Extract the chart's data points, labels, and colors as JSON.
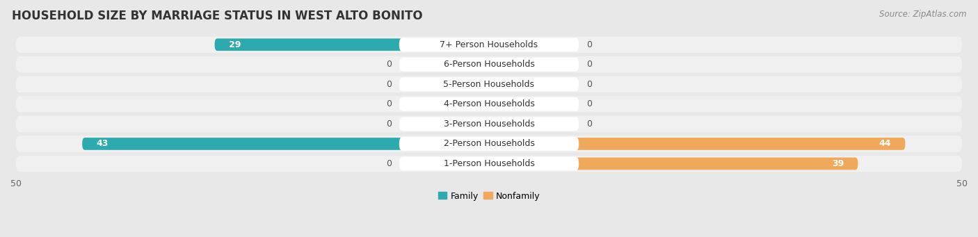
{
  "title": "HOUSEHOLD SIZE BY MARRIAGE STATUS IN WEST ALTO BONITO",
  "source": "Source: ZipAtlas.com",
  "categories": [
    "7+ Person Households",
    "6-Person Households",
    "5-Person Households",
    "4-Person Households",
    "3-Person Households",
    "2-Person Households",
    "1-Person Households"
  ],
  "family_values": [
    29,
    0,
    0,
    0,
    0,
    43,
    0
  ],
  "nonfamily_values": [
    0,
    0,
    0,
    0,
    0,
    44,
    39
  ],
  "family_color": "#2DAAAD",
  "nonfamily_color": "#F0A85A",
  "family_color_light": "#8ECFD1",
  "nonfamily_color_light": "#F5CDA8",
  "background_color": "#e8e8e8",
  "row_bg_color": "#f0f0f0",
  "label_bg_color": "#ffffff",
  "title_fontsize": 12,
  "source_fontsize": 8.5,
  "label_fontsize": 9,
  "value_fontsize": 9,
  "tick_fontsize": 9,
  "zero_stub": 4,
  "xlim_left": -50,
  "xlim_right": 50
}
